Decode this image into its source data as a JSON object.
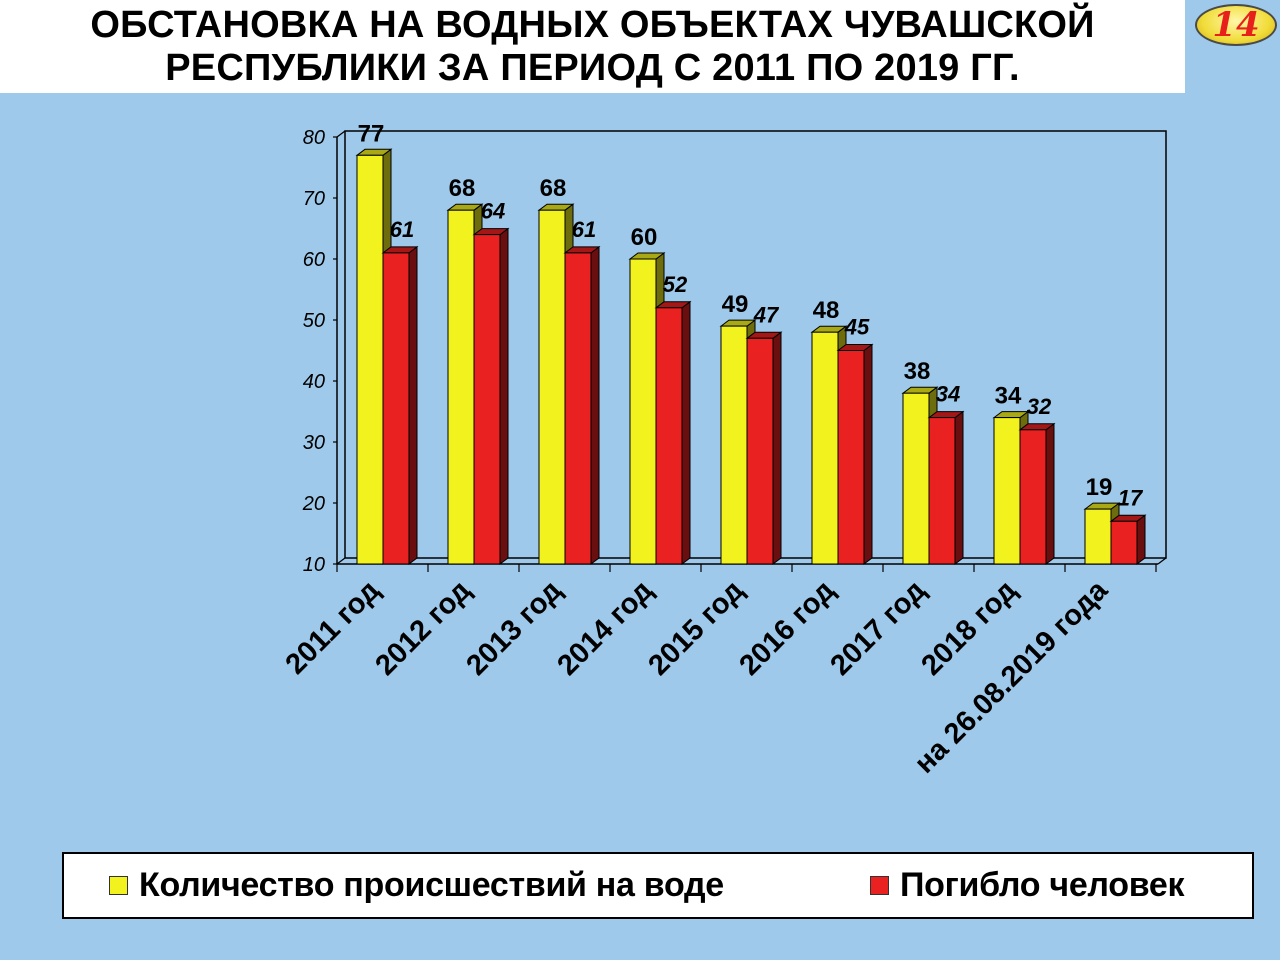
{
  "header": {
    "title_line1": "ОБСТАНОВКА НА ВОДНЫХ ОБЪЕКТАХ ЧУВАШСКОЙ",
    "title_line2": "РЕСПУБЛИКИ ЗА ПЕРИОД С 2011 ПО 2019 ГГ.",
    "page_number": "14"
  },
  "chart_data": {
    "type": "bar",
    "title": "",
    "xlabel": "",
    "ylabel": "",
    "ylim": [
      10,
      80
    ],
    "yticks": [
      10,
      20,
      30,
      40,
      50,
      60,
      70,
      80
    ],
    "grid": false,
    "legend_position": "bottom",
    "categories": [
      "2011 год",
      "2012 год",
      "2013 год",
      "2014 год",
      "2015 год",
      "2016 год",
      "2017 год",
      "2018 год",
      "на 26.08.2019 года"
    ],
    "series": [
      {
        "name": "Количество происшествий на воде",
        "color": "#f2f21e",
        "values": [
          77,
          68,
          68,
          60,
          49,
          48,
          38,
          34,
          19
        ]
      },
      {
        "name": "Погибло человек",
        "color": "#ea2121",
        "values": [
          61,
          64,
          61,
          52,
          47,
          45,
          34,
          32,
          17
        ]
      }
    ]
  }
}
